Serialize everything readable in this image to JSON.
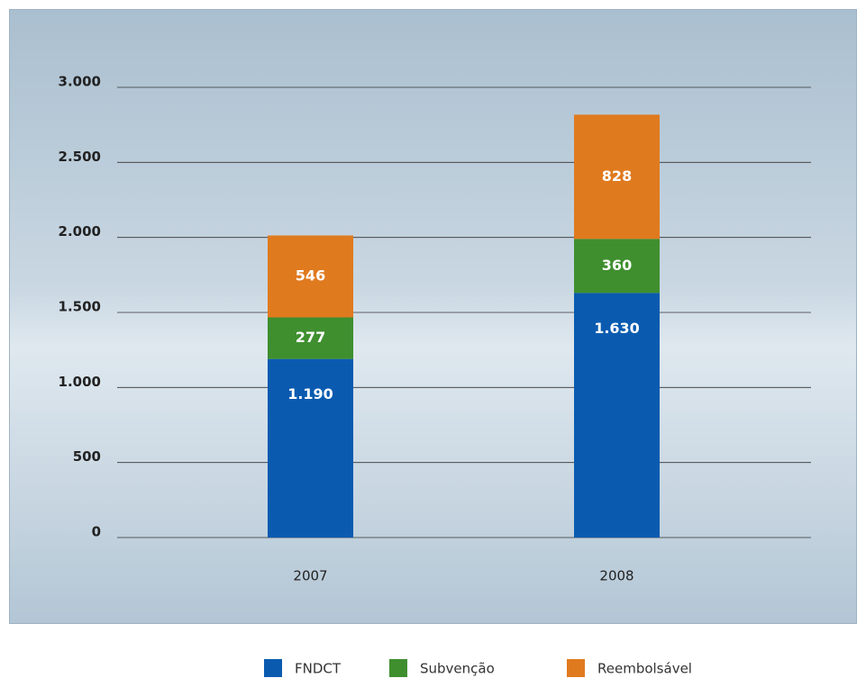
{
  "chart_data": {
    "type": "stacked-bar",
    "categories": [
      "2007",
      "2008"
    ],
    "series": [
      {
        "name": "FNDCT",
        "color": "#0a5bb0",
        "values": [
          1190,
          1630
        ],
        "value_labels": [
          "1.190",
          "1.630"
        ]
      },
      {
        "name": "Subvenção",
        "color": "#3f8f2f",
        "values": [
          277,
          360
        ]
      },
      {
        "name": "Reembolsável",
        "color": "#e07a1f",
        "values": [
          546,
          828
        ]
      }
    ],
    "ylim": [
      0,
      3000
    ],
    "yticks": [
      0,
      500,
      {
        "value": 1000,
        "label": "1.000"
      },
      {
        "value": 1500,
        "label": "1.500"
      },
      {
        "value": 2000,
        "label": "2.000"
      },
      {
        "value": 2500,
        "label": "2.500"
      },
      {
        "value": 3000,
        "label": "3.000"
      }
    ],
    "grid": true
  }
}
